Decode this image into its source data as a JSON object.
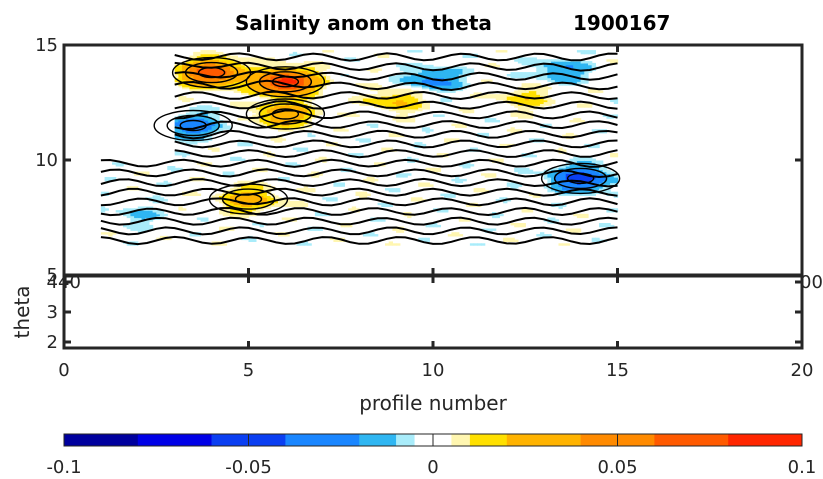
{
  "chart_data": {
    "type": "contour",
    "title": "Salinity anom on theta",
    "float_id": "1900167",
    "xlabel": "profile number",
    "ylabel": "theta",
    "upper_axis": {
      "xlim": [
        0,
        20
      ],
      "ylim": [
        5,
        15
      ],
      "yticks": [
        "5",
        "10",
        "15"
      ]
    },
    "lower_axis": {
      "xlim": [
        0,
        20
      ],
      "ylim": [
        1.8,
        4.2
      ],
      "xticks": [
        "0",
        "5",
        "10",
        "15",
        "20"
      ],
      "yticks": [
        "2",
        "3",
        "4"
      ],
      "partial_ticks": [
        "40",
        "00"
      ]
    },
    "data_extent": {
      "profiles": [
        1,
        15
      ],
      "theta_range_profiles_1_3": [
        6.3,
        10.0
      ],
      "theta_range_profiles_3_15": [
        6.3,
        14.8
      ]
    },
    "anomaly_features": [
      {
        "profile": 4,
        "theta": 13.8,
        "value": 0.075
      },
      {
        "profile": 6,
        "theta": 13.4,
        "value": 0.09
      },
      {
        "profile": 6,
        "theta": 12.0,
        "value": 0.035
      },
      {
        "profile": 3.5,
        "theta": 11.5,
        "value": -0.03
      },
      {
        "profile": 9,
        "theta": 12.6,
        "value": 0.02
      },
      {
        "profile": 10,
        "theta": 13.5,
        "value": -0.025
      },
      {
        "profile": 12.5,
        "theta": 12.7,
        "value": 0.015
      },
      {
        "profile": 14,
        "theta": 9.2,
        "value": -0.05
      },
      {
        "profile": 13.5,
        "theta": 13.9,
        "value": -0.02
      },
      {
        "profile": 5,
        "theta": 8.3,
        "value": 0.03
      },
      {
        "profile": 2,
        "theta": 7.6,
        "value": -0.01
      }
    ],
    "colorbar": {
      "range": [
        -0.1,
        0.1
      ],
      "tick_labels": [
        "-0.1",
        "-0.05",
        "0",
        "0.05",
        "0.1"
      ],
      "levels": [
        -0.1,
        -0.08,
        -0.06,
        -0.04,
        -0.02,
        -0.01,
        -0.005,
        0,
        0.005,
        0.01,
        0.02,
        0.04,
        0.06,
        0.08,
        0.1
      ],
      "colors": [
        "#00009e",
        "#0000e6",
        "#0b3ff2",
        "#1a86ff",
        "#2fb6f2",
        "#a9ecfa",
        "#ffffff",
        "#ffffff",
        "#fff6b0",
        "#ffe000",
        "#ffb300",
        "#ff8a00",
        "#ff5a00",
        "#ff2600"
      ]
    }
  }
}
